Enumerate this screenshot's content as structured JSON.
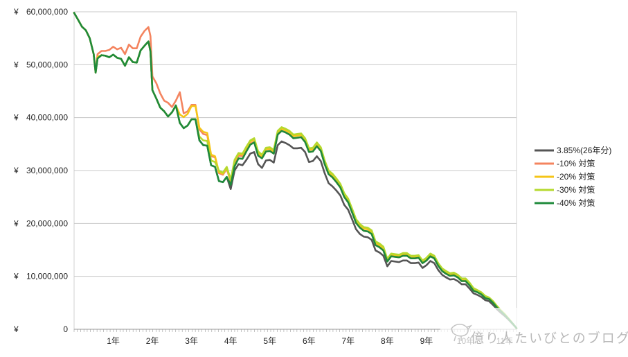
{
  "chart_data": {
    "type": "line",
    "y_currency_symbol": "¥",
    "ylim": [
      0,
      60000000
    ],
    "y_ticks": [
      {
        "value": 0,
        "label": "0"
      },
      {
        "value": 10000000,
        "label": "10,000,000"
      },
      {
        "value": 20000000,
        "label": "20,000,000"
      },
      {
        "value": 30000000,
        "label": "30,000,000"
      },
      {
        "value": 40000000,
        "label": "40,000,000"
      },
      {
        "value": 50000000,
        "label": "50,000,000"
      },
      {
        "value": 60000000,
        "label": "60,000,000"
      }
    ],
    "x_ticks": [
      "1年",
      "2年",
      "3年",
      "4年",
      "5年",
      "6年",
      "7年",
      "8年",
      "9年",
      "10年",
      "11年"
    ],
    "xlim": [
      0,
      11.3
    ],
    "grid": true,
    "legend_position": "right",
    "colors": [
      "#555555",
      "#f4845f",
      "#f5c518",
      "#b5d92e",
      "#1f8a3b"
    ],
    "x": [
      0,
      0.1,
      0.2,
      0.3,
      0.4,
      0.5,
      0.55,
      0.6,
      0.7,
      0.8,
      0.9,
      1,
      1.1,
      1.2,
      1.3,
      1.4,
      1.5,
      1.6,
      1.7,
      1.8,
      1.9,
      1.95,
      2.0,
      2.1,
      2.2,
      2.3,
      2.4,
      2.5,
      2.6,
      2.7,
      2.8,
      2.9,
      3.0,
      3.1,
      3.2,
      3.3,
      3.4,
      3.5,
      3.6,
      3.7,
      3.8,
      3.9,
      4.0,
      4.1,
      4.2,
      4.3,
      4.4,
      4.5,
      4.6,
      4.7,
      4.8,
      4.9,
      5.0,
      5.1,
      5.2,
      5.3,
      5.4,
      5.5,
      5.6,
      5.7,
      5.8,
      5.9,
      6.0,
      6.1,
      6.2,
      6.3,
      6.4,
      6.5,
      6.6,
      6.7,
      6.8,
      6.9,
      7.0,
      7.1,
      7.2,
      7.3,
      7.4,
      7.5,
      7.6,
      7.7,
      7.8,
      7.9,
      8.0,
      8.1,
      8.2,
      8.3,
      8.4,
      8.5,
      8.6,
      8.7,
      8.8,
      8.9,
      9.0,
      9.1,
      9.2,
      9.3,
      9.4,
      9.5,
      9.6,
      9.7,
      9.8,
      9.9,
      10.0,
      10.1,
      10.2,
      10.3,
      10.4,
      10.5,
      10.6,
      10.7,
      10.8,
      10.9,
      11.0,
      11.1,
      11.2,
      11.3
    ],
    "series": [
      {
        "name": "3.85%(26年分)",
        "values": [
          59800000,
          58500000,
          57200000,
          56500000,
          55000000,
          52000000,
          48500000,
          51200000,
          51800000,
          51700000,
          51400000,
          51900000,
          51300000,
          51100000,
          49800000,
          51400000,
          50500000,
          50400000,
          52700000,
          53600000,
          54400000,
          52500000,
          45200000,
          43600000,
          41900000,
          41200000,
          40200000,
          41000000,
          42300000,
          39000000,
          38000000,
          38500000,
          39700000,
          39700000,
          35700000,
          34800000,
          34700000,
          31000000,
          30700000,
          28000000,
          27800000,
          28800000,
          26500000,
          30000000,
          31200000,
          31000000,
          32000000,
          33200000,
          33500000,
          31200000,
          30500000,
          31900000,
          32000000,
          31500000,
          34800000,
          35500000,
          35200000,
          34800000,
          34200000,
          34200000,
          34300000,
          33500000,
          31600000,
          31800000,
          32700000,
          31800000,
          29500000,
          27600000,
          27000000,
          26200000,
          25300000,
          23500000,
          22600000,
          20800000,
          18900000,
          18000000,
          17500000,
          17400000,
          16900000,
          14900000,
          14500000,
          13900000,
          11900000,
          12900000,
          12800000,
          12700000,
          13000000,
          13000000,
          12500000,
          12500000,
          12600000,
          11600000,
          12100000,
          12900000,
          12500000,
          11200000,
          10300000,
          9800000,
          9400000,
          9500000,
          9100000,
          8500000,
          8500000,
          7700000,
          6800000,
          6500000,
          6100000,
          5500000,
          5300000,
          4600000,
          3800000,
          3100000,
          2500000,
          1800000,
          1000000,
          200000
        ]
      },
      {
        "name": "-10% 対策",
        "values": [
          59800000,
          58500000,
          57200000,
          56500000,
          55000000,
          52000000,
          48500000,
          52000000,
          52600000,
          52600000,
          52800000,
          53400000,
          52900000,
          53200000,
          52000000,
          53800000,
          53100000,
          53100000,
          55300000,
          56400000,
          57100000,
          55400000,
          47800000,
          46500000,
          44600000,
          43200000,
          42800000,
          42000000,
          43200000,
          44800000,
          40800000,
          41200000,
          42400000,
          42400000,
          37800000,
          36900000,
          36700000,
          32700000,
          32500000,
          29500000,
          29200000,
          30300000,
          27900000,
          31500000,
          32800000,
          32700000,
          33900000,
          35100000,
          35400000,
          32900000,
          32300000,
          33600000,
          33700000,
          33200000,
          36800000,
          37500000,
          37200000,
          36800000,
          36100000,
          36200000,
          36300000,
          35400000,
          33500000,
          33600000,
          34600000,
          33700000,
          31200000,
          29300000,
          28700000,
          27800000,
          26800000,
          25000000,
          24000000,
          22100000,
          20100000,
          19200000,
          18600000,
          18500000,
          18000000,
          15900000,
          15500000,
          14900000,
          12800000,
          13800000,
          13700000,
          13600000,
          13900000,
          13900000,
          13400000,
          13400000,
          13500000,
          12500000,
          13000000,
          13800000,
          13400000,
          12000000,
          11000000,
          10500000,
          10100000,
          10200000,
          9800000,
          9100000,
          9100000,
          8300000,
          7300000,
          7000000,
          6600000,
          5900000,
          5700000,
          5000000,
          4100000,
          3400000,
          2700000,
          1900000,
          1100000,
          200000
        ]
      },
      {
        "name": "-20% 対策",
        "values": [
          59800000,
          58500000,
          57200000,
          56500000,
          55000000,
          52000000,
          48500000,
          51500000,
          51800000,
          51700000,
          51400000,
          51900000,
          51300000,
          51100000,
          49800000,
          51400000,
          50500000,
          50400000,
          52700000,
          53600000,
          54400000,
          52500000,
          45200000,
          43600000,
          41900000,
          41200000,
          40200000,
          41000000,
          42300000,
          40600000,
          40100000,
          40700000,
          42200000,
          42200000,
          38100000,
          37300000,
          37100000,
          33000000,
          32700000,
          29700000,
          29400000,
          30500000,
          28100000,
          31800000,
          33100000,
          33000000,
          34300000,
          35500000,
          35800000,
          33300000,
          32700000,
          34000000,
          34100000,
          33600000,
          37200000,
          37900000,
          37600000,
          37200000,
          36500000,
          36600000,
          36700000,
          35800000,
          33900000,
          34000000,
          35000000,
          34100000,
          31600000,
          29700000,
          29100000,
          28200000,
          27200000,
          25400000,
          24400000,
          22500000,
          20500000,
          19600000,
          19000000,
          18900000,
          18400000,
          16300000,
          15900000,
          15300000,
          13100000,
          14100000,
          14000000,
          13900000,
          14200000,
          14200000,
          13700000,
          13700000,
          13800000,
          12800000,
          13300000,
          14100000,
          13700000,
          12300000,
          11300000,
          10800000,
          10400000,
          10500000,
          10100000,
          9400000,
          9400000,
          8600000,
          7600000,
          7200000,
          6800000,
          6100000,
          5900000,
          5200000,
          4300000,
          3500000,
          2800000,
          2000000,
          1100000,
          200000
        ]
      },
      {
        "name": "-30% 対策",
        "values": [
          59800000,
          58500000,
          57200000,
          56500000,
          55000000,
          52000000,
          48500000,
          51200000,
          51800000,
          51700000,
          51400000,
          51900000,
          51300000,
          51100000,
          49800000,
          51400000,
          50500000,
          50400000,
          52700000,
          53600000,
          54400000,
          52500000,
          45200000,
          43600000,
          41900000,
          41200000,
          40200000,
          41000000,
          42300000,
          39000000,
          38000000,
          38500000,
          39700000,
          39700000,
          36400000,
          35700000,
          35600000,
          31900000,
          31600000,
          30000000,
          29600000,
          30700000,
          28300000,
          32000000,
          33300000,
          33200000,
          34500000,
          35700000,
          36100000,
          33600000,
          33000000,
          34300000,
          34400000,
          33900000,
          37500000,
          38200000,
          37900000,
          37500000,
          36800000,
          36900000,
          37000000,
          36100000,
          34200000,
          34300000,
          35300000,
          34400000,
          31900000,
          30000000,
          29400000,
          28500000,
          27500000,
          25700000,
          24700000,
          22800000,
          20800000,
          19900000,
          19300000,
          19200000,
          18700000,
          16600000,
          16200000,
          15600000,
          13300000,
          14300000,
          14200000,
          14100000,
          14400000,
          14400000,
          13900000,
          13900000,
          14000000,
          13000000,
          13500000,
          14300000,
          13900000,
          12500000,
          11500000,
          11000000,
          10600000,
          10700000,
          10300000,
          9600000,
          9600000,
          8800000,
          7800000,
          7400000,
          7000000,
          6300000,
          6000000,
          5300000,
          4400000,
          3600000,
          2900000,
          2000000,
          1100000,
          200000
        ]
      },
      {
        "name": "-40% 対策",
        "values": [
          59800000,
          58500000,
          57200000,
          56500000,
          55000000,
          52000000,
          48500000,
          51200000,
          51800000,
          51700000,
          51400000,
          51900000,
          51300000,
          51100000,
          49800000,
          51400000,
          50500000,
          50400000,
          52700000,
          53600000,
          54400000,
          52500000,
          45200000,
          43600000,
          41900000,
          41200000,
          40200000,
          41000000,
          42300000,
          39000000,
          38000000,
          38500000,
          39700000,
          39700000,
          35700000,
          34800000,
          34700000,
          31000000,
          30700000,
          28000000,
          27800000,
          28800000,
          27300000,
          30800000,
          32300000,
          32200000,
          33600000,
          34900000,
          35300000,
          32800000,
          32300000,
          33600000,
          33700000,
          33200000,
          36800000,
          37500000,
          37200000,
          36800000,
          36100000,
          36200000,
          36300000,
          35400000,
          33500000,
          33600000,
          34600000,
          33700000,
          31200000,
          29300000,
          28700000,
          27800000,
          26800000,
          25000000,
          24000000,
          22100000,
          20100000,
          19200000,
          18600000,
          18500000,
          18000000,
          15900000,
          15500000,
          14900000,
          12800000,
          13800000,
          13700000,
          13600000,
          13900000,
          13900000,
          13400000,
          13400000,
          13500000,
          12500000,
          13000000,
          13800000,
          13400000,
          12000000,
          11000000,
          10500000,
          10100000,
          10200000,
          9800000,
          9100000,
          9100000,
          8300000,
          7300000,
          7000000,
          6600000,
          5900000,
          5700000,
          5000000,
          4100000,
          3400000,
          2700000,
          1900000,
          1100000,
          200000
        ]
      }
    ]
  },
  "watermark": {
    "text": "億り人たいびとのブログ",
    "icon": "bird-icon"
  }
}
